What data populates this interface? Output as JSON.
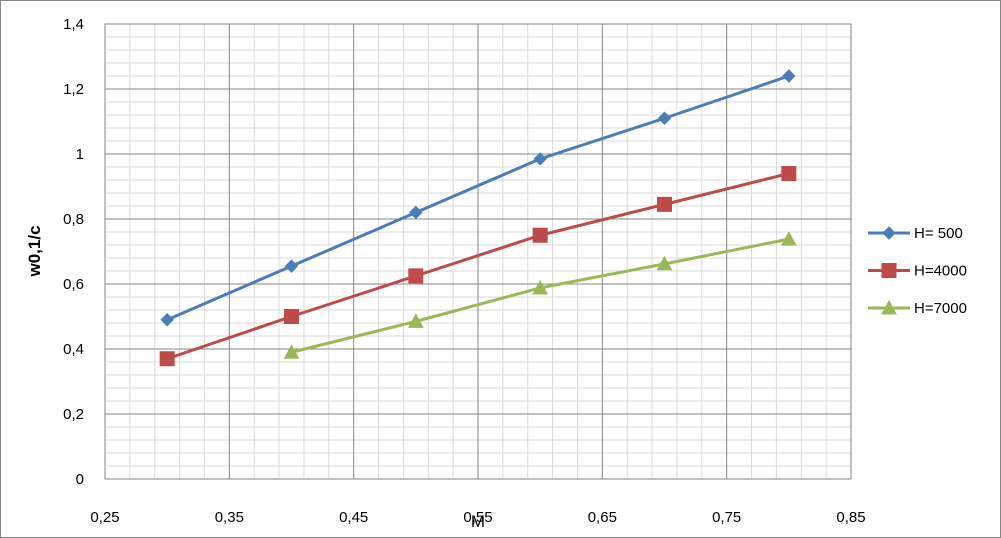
{
  "chart_data": {
    "type": "line",
    "title": "",
    "xlabel": "M",
    "ylabel": "w0,1/c",
    "xlim": [
      0.25,
      0.85
    ],
    "ylim": [
      0,
      1.4
    ],
    "x_ticks": [
      "0,25",
      "0,35",
      "0,45",
      "0,55",
      "0,65",
      "0,75",
      "0,85"
    ],
    "y_ticks": [
      "0",
      "0,2",
      "0,4",
      "0,6",
      "0,8",
      "1",
      "1,2",
      "1,4"
    ],
    "grid": true,
    "legend_position": "right",
    "series": [
      {
        "name": "H= 500",
        "color": "#4A7EBB",
        "marker": "diamond",
        "x": [
          0.3,
          0.4,
          0.5,
          0.6,
          0.7,
          0.8
        ],
        "y": [
          0.49,
          0.655,
          0.82,
          0.985,
          1.11,
          1.24
        ]
      },
      {
        "name": "H=4000",
        "color": "#BE4B48",
        "marker": "square",
        "x": [
          0.3,
          0.4,
          0.5,
          0.6,
          0.7,
          0.8
        ],
        "y": [
          0.37,
          0.5,
          0.625,
          0.75,
          0.845,
          0.94
        ]
      },
      {
        "name": "H=7000",
        "color": "#98B954",
        "marker": "triangle",
        "x": [
          0.4,
          0.5,
          0.6,
          0.7,
          0.8
        ],
        "y": [
          0.39,
          0.485,
          0.588,
          0.662,
          0.738
        ]
      }
    ]
  }
}
